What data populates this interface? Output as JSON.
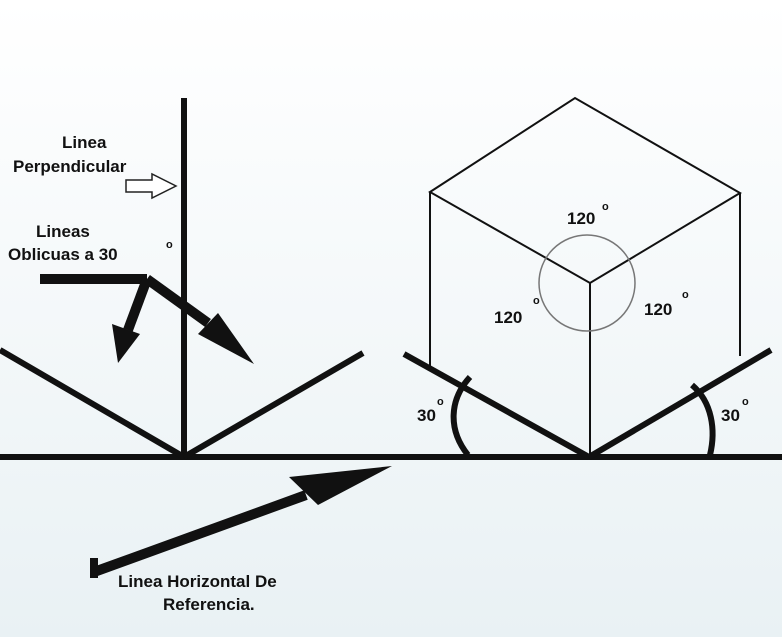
{
  "labels": {
    "perpendicular_line": [
      "Linea",
      "Perpendicular"
    ],
    "oblique_lines": [
      "Lineas",
      "Oblicuas a 30"
    ],
    "horizontal_reference": [
      "Linea Horizontal De",
      "Referencia."
    ],
    "degree_symbol": "o"
  },
  "angles": {
    "top_face": "120",
    "left_face": "120",
    "right_face": "120",
    "left_base": "30",
    "right_base": "30"
  },
  "colors": {
    "background_top": "#ffffff",
    "background_bottom": "#e9f1f4",
    "stroke": "#111111",
    "circle": "#777777",
    "hollow_arrow": "#ffffff"
  }
}
